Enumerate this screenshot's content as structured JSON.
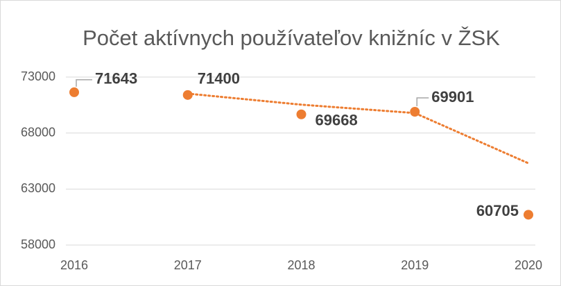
{
  "chart_data": {
    "type": "scatter",
    "title": "Počet aktívnych používateľov knižníc v ŽSK",
    "x": [
      2016,
      2017,
      2018,
      2019,
      2020
    ],
    "series": [
      {
        "color": "#ed7d31",
        "values": [
          71643,
          71400,
          69668,
          69901,
          60705
        ]
      }
    ],
    "trendline": {
      "color": "#ed7d31",
      "style": "dotted",
      "values": [
        null,
        71521.5,
        70534,
        69784.5,
        65303
      ]
    },
    "xlim": [
      2016,
      2020
    ],
    "xticks": [
      2016,
      2017,
      2018,
      2019,
      2020
    ],
    "ylim": [
      58000,
      73000
    ],
    "yticks": [
      58000,
      63000,
      68000,
      73000
    ],
    "grid": true
  }
}
